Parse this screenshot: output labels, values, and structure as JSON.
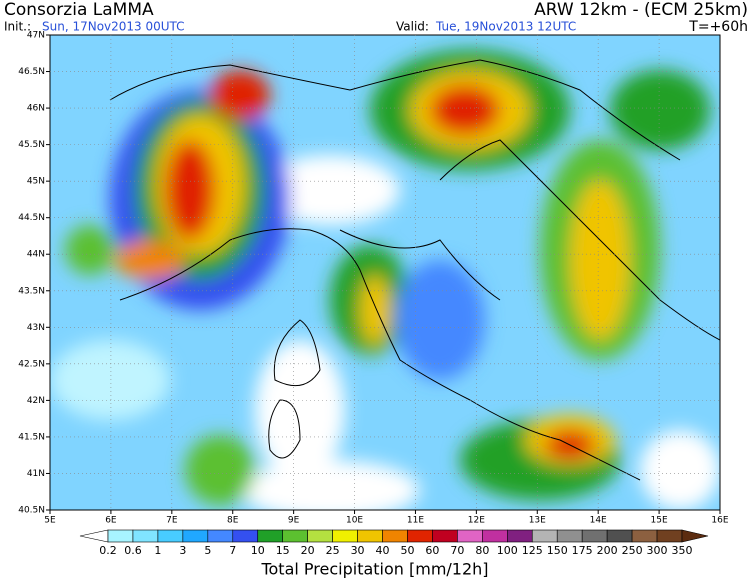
{
  "header": {
    "title": "Consorzia LaMMA",
    "model": "ARW 12km - (ECM 25km)",
    "init_label": "Init.:",
    "init_time": "Sun, 17Nov2013 00UTC",
    "valid_label": "Valid:",
    "valid_time": "Tue, 19Nov2013 12UTC",
    "lead_time": "T=+60h"
  },
  "map": {
    "lon_labels": [
      "5E",
      "6E",
      "7E",
      "8E",
      "9E",
      "10E",
      "11E",
      "12E",
      "13E",
      "14E",
      "15E",
      "16E"
    ],
    "lat_labels": [
      "47N",
      "46.5N",
      "46N",
      "45.5N",
      "45N",
      "44.5N",
      "44N",
      "43.5N",
      "43N",
      "42.5N",
      "42N",
      "41.5N",
      "41N",
      "40.5N"
    ]
  },
  "colorbar": {
    "title": "Total Precipitation [mm/12h]",
    "levels": [
      0.2,
      0.6,
      1,
      3,
      5,
      7,
      10,
      15,
      20,
      25,
      30,
      40,
      50,
      60,
      70,
      80,
      100,
      125,
      150,
      175,
      200,
      250,
      300,
      350
    ],
    "colors": [
      "#ffffff",
      "#a8f4ff",
      "#80e4ff",
      "#48ccff",
      "#20a8ff",
      "#4488ff",
      "#3450f0",
      "#20a028",
      "#5cc030",
      "#b4e040",
      "#f0f000",
      "#f0c400",
      "#f08400",
      "#e02400",
      "#c00020",
      "#e064c4",
      "#c030a0",
      "#802080",
      "#b4b4b4",
      "#909090",
      "#707070",
      "#505050",
      "#8c6040",
      "#704020",
      "#5c2c10"
    ]
  }
}
